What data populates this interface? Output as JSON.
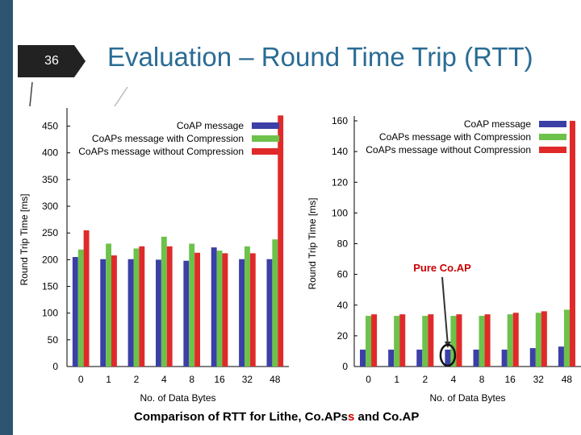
{
  "slide": {
    "number": "36",
    "title": "Evaluation – Round Time Trip (RTT)",
    "caption_before": "Comparison of RTT for Lithe, Co.APs",
    "caption_highlight": "s",
    "caption_after": " and Co.AP",
    "colors": {
      "title": "#2a6c95",
      "sidebar": "#2d5571",
      "caption_highlight": "#cc0000"
    }
  },
  "chart_data": [
    {
      "type": "bar",
      "categories": [
        "0",
        "1",
        "2",
        "4",
        "8",
        "16",
        "32",
        "48"
      ],
      "xlabel": "No. of Data Bytes",
      "ylabel": "Round Trip Time [ms]",
      "ylim": [
        0,
        475
      ],
      "yticks": [
        "0",
        "50",
        "100",
        "150",
        "200",
        "250",
        "300",
        "350",
        "400",
        "450"
      ],
      "legend_position": "top-right",
      "grid": false,
      "series": [
        {
          "name": "CoAP message",
          "color": "#3b3fa6",
          "values": [
            205,
            201,
            201,
            200,
            198,
            223,
            201,
            201
          ]
        },
        {
          "name": "CoAPs message with Compression",
          "color": "#6cc24a",
          "values": [
            219,
            230,
            221,
            243,
            230,
            217,
            225,
            238
          ]
        },
        {
          "name": "CoAPs message without Compression",
          "color": "#e02a2a",
          "values": [
            255,
            208,
            225,
            225,
            213,
            212,
            212,
            470
          ]
        }
      ]
    },
    {
      "type": "bar",
      "categories": [
        "0",
        "1",
        "2",
        "4",
        "8",
        "16",
        "32",
        "48"
      ],
      "xlabel": "No. of Data Bytes",
      "ylabel": "Round Trip Time [ms]",
      "ylim": [
        0,
        160
      ],
      "yticks": [
        "0",
        "20",
        "40",
        "60",
        "80",
        "100",
        "120",
        "140",
        "160"
      ],
      "legend_position": "top-right",
      "grid": false,
      "annotation": "Pure Co.AP",
      "annotation_target": "4",
      "series": [
        {
          "name": "CoAP message",
          "color": "#3b3fa6",
          "values": [
            11,
            11,
            11,
            11,
            11,
            11,
            12,
            13
          ]
        },
        {
          "name": "CoAPs message with Compression",
          "color": "#6cc24a",
          "values": [
            33,
            33,
            33,
            33,
            33,
            34,
            35,
            37
          ]
        },
        {
          "name": "CoAPs message without Compression",
          "color": "#e02a2a",
          "values": [
            34,
            34,
            34,
            34,
            34,
            35,
            36,
            160
          ]
        }
      ]
    }
  ]
}
